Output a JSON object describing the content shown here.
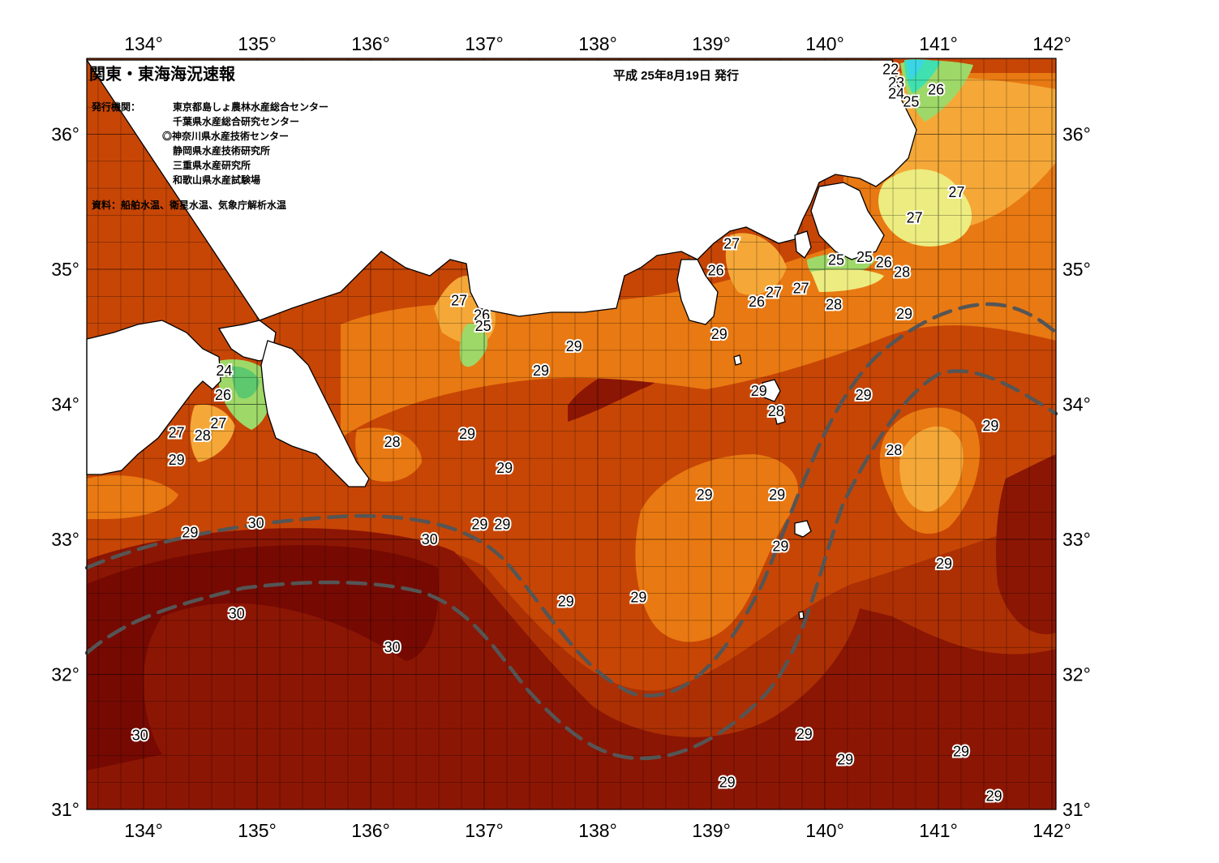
{
  "title": "関東・東海海況速報",
  "issue_date": "平成 25年8月19日 発行",
  "agencies_label": "発行機関：",
  "agencies": [
    "東京都島しょ農林水産総合センター",
    "千葉県水産総合研究センター",
    "◎神奈川県水産技術センター",
    "静岡県水産技術研究所",
    "三重県水産研究所",
    "和歌山県水産試験場"
  ],
  "sources": "資料：船舶水温、衛星水温、気象庁解析水温",
  "lon_labels": [
    "134°",
    "135°",
    "136°",
    "137°",
    "138°",
    "139°",
    "140°",
    "141°",
    "142°"
  ],
  "lat_labels": [
    "36°",
    "35°",
    "34°",
    "33°",
    "32°",
    "31°"
  ],
  "colors": {
    "t22": "#3ad6e6",
    "t23": "#40e0b0",
    "t24": "#5ec86e",
    "t25": "#9ed868",
    "t26": "#ecec80",
    "t27": "#f5a838",
    "t28": "#e97912",
    "t29": "#c74605",
    "t29b": "#ad3004",
    "t30": "#8c1604",
    "t30b": "#760a02",
    "land": "#ffffff",
    "coast": "#000000",
    "current_path": "#555555"
  },
  "isotherm_labels": [
    {
      "text": "22",
      "lon": 140.58,
      "lat": 36.48
    },
    {
      "text": "23",
      "lon": 140.63,
      "lat": 36.38
    },
    {
      "text": "24",
      "lon": 140.63,
      "lat": 36.3
    },
    {
      "text": "25",
      "lon": 140.76,
      "lat": 36.24
    },
    {
      "text": "26",
      "lon": 140.98,
      "lat": 36.33
    },
    {
      "text": "27",
      "lon": 141.16,
      "lat": 35.57
    },
    {
      "text": "27",
      "lon": 140.79,
      "lat": 35.38
    },
    {
      "text": "27",
      "lon": 139.18,
      "lat": 35.19
    },
    {
      "text": "26",
      "lon": 139.04,
      "lat": 34.99
    },
    {
      "text": "25",
      "lon": 140.1,
      "lat": 35.07
    },
    {
      "text": "25",
      "lon": 140.35,
      "lat": 35.09
    },
    {
      "text": "26",
      "lon": 140.52,
      "lat": 35.05
    },
    {
      "text": "28",
      "lon": 140.68,
      "lat": 34.98
    },
    {
      "text": "27",
      "lon": 139.55,
      "lat": 34.83
    },
    {
      "text": "27",
      "lon": 139.79,
      "lat": 34.86
    },
    {
      "text": "26",
      "lon": 139.4,
      "lat": 34.76
    },
    {
      "text": "28",
      "lon": 140.08,
      "lat": 34.74
    },
    {
      "text": "29",
      "lon": 140.7,
      "lat": 34.67
    },
    {
      "text": "29",
      "lon": 139.07,
      "lat": 34.52
    },
    {
      "text": "29",
      "lon": 137.79,
      "lat": 34.43
    },
    {
      "text": "29",
      "lon": 137.5,
      "lat": 34.25
    },
    {
      "text": "29",
      "lon": 139.42,
      "lat": 34.1
    },
    {
      "text": "28",
      "lon": 139.57,
      "lat": 33.95
    },
    {
      "text": "29",
      "lon": 140.34,
      "lat": 34.07
    },
    {
      "text": "29",
      "lon": 141.46,
      "lat": 33.84
    },
    {
      "text": "28",
      "lon": 140.61,
      "lat": 33.66
    },
    {
      "text": "29",
      "lon": 136.85,
      "lat": 33.78
    },
    {
      "text": "29",
      "lon": 137.18,
      "lat": 33.53
    },
    {
      "text": "29",
      "lon": 138.94,
      "lat": 33.33
    },
    {
      "text": "29",
      "lon": 139.58,
      "lat": 33.33
    },
    {
      "text": "29",
      "lon": 136.96,
      "lat": 33.11
    },
    {
      "text": "29",
      "lon": 137.16,
      "lat": 33.11
    },
    {
      "text": "29",
      "lon": 139.61,
      "lat": 32.95
    },
    {
      "text": "29",
      "lon": 141.05,
      "lat": 32.82
    },
    {
      "text": "29",
      "lon": 137.72,
      "lat": 32.54
    },
    {
      "text": "29",
      "lon": 138.36,
      "lat": 32.57
    },
    {
      "text": "28",
      "lon": 136.19,
      "lat": 33.72
    },
    {
      "text": "27",
      "lon": 136.78,
      "lat": 34.77
    },
    {
      "text": "26",
      "lon": 136.98,
      "lat": 34.66
    },
    {
      "text": "25",
      "lon": 136.99,
      "lat": 34.58
    },
    {
      "text": "24",
      "lon": 134.71,
      "lat": 34.25
    },
    {
      "text": "26",
      "lon": 134.7,
      "lat": 34.07
    },
    {
      "text": "27",
      "lon": 134.66,
      "lat": 33.86
    },
    {
      "text": "27",
      "lon": 134.29,
      "lat": 33.79
    },
    {
      "text": "28",
      "lon": 134.52,
      "lat": 33.77
    },
    {
      "text": "29",
      "lon": 134.29,
      "lat": 33.59
    },
    {
      "text": "29",
      "lon": 134.41,
      "lat": 33.05
    },
    {
      "text": "30",
      "lon": 134.99,
      "lat": 33.12
    },
    {
      "text": "30",
      "lon": 136.52,
      "lat": 33.0
    },
    {
      "text": "30",
      "lon": 134.82,
      "lat": 32.45
    },
    {
      "text": "30",
      "lon": 136.19,
      "lat": 32.2
    },
    {
      "text": "30",
      "lon": 133.97,
      "lat": 31.55
    },
    {
      "text": "29",
      "lon": 139.82,
      "lat": 31.56
    },
    {
      "text": "29",
      "lon": 140.18,
      "lat": 31.37
    },
    {
      "text": "29",
      "lon": 141.2,
      "lat": 31.43
    },
    {
      "text": "29",
      "lon": 141.49,
      "lat": 31.1
    },
    {
      "text": "29",
      "lon": 139.14,
      "lat": 31.2
    }
  ]
}
